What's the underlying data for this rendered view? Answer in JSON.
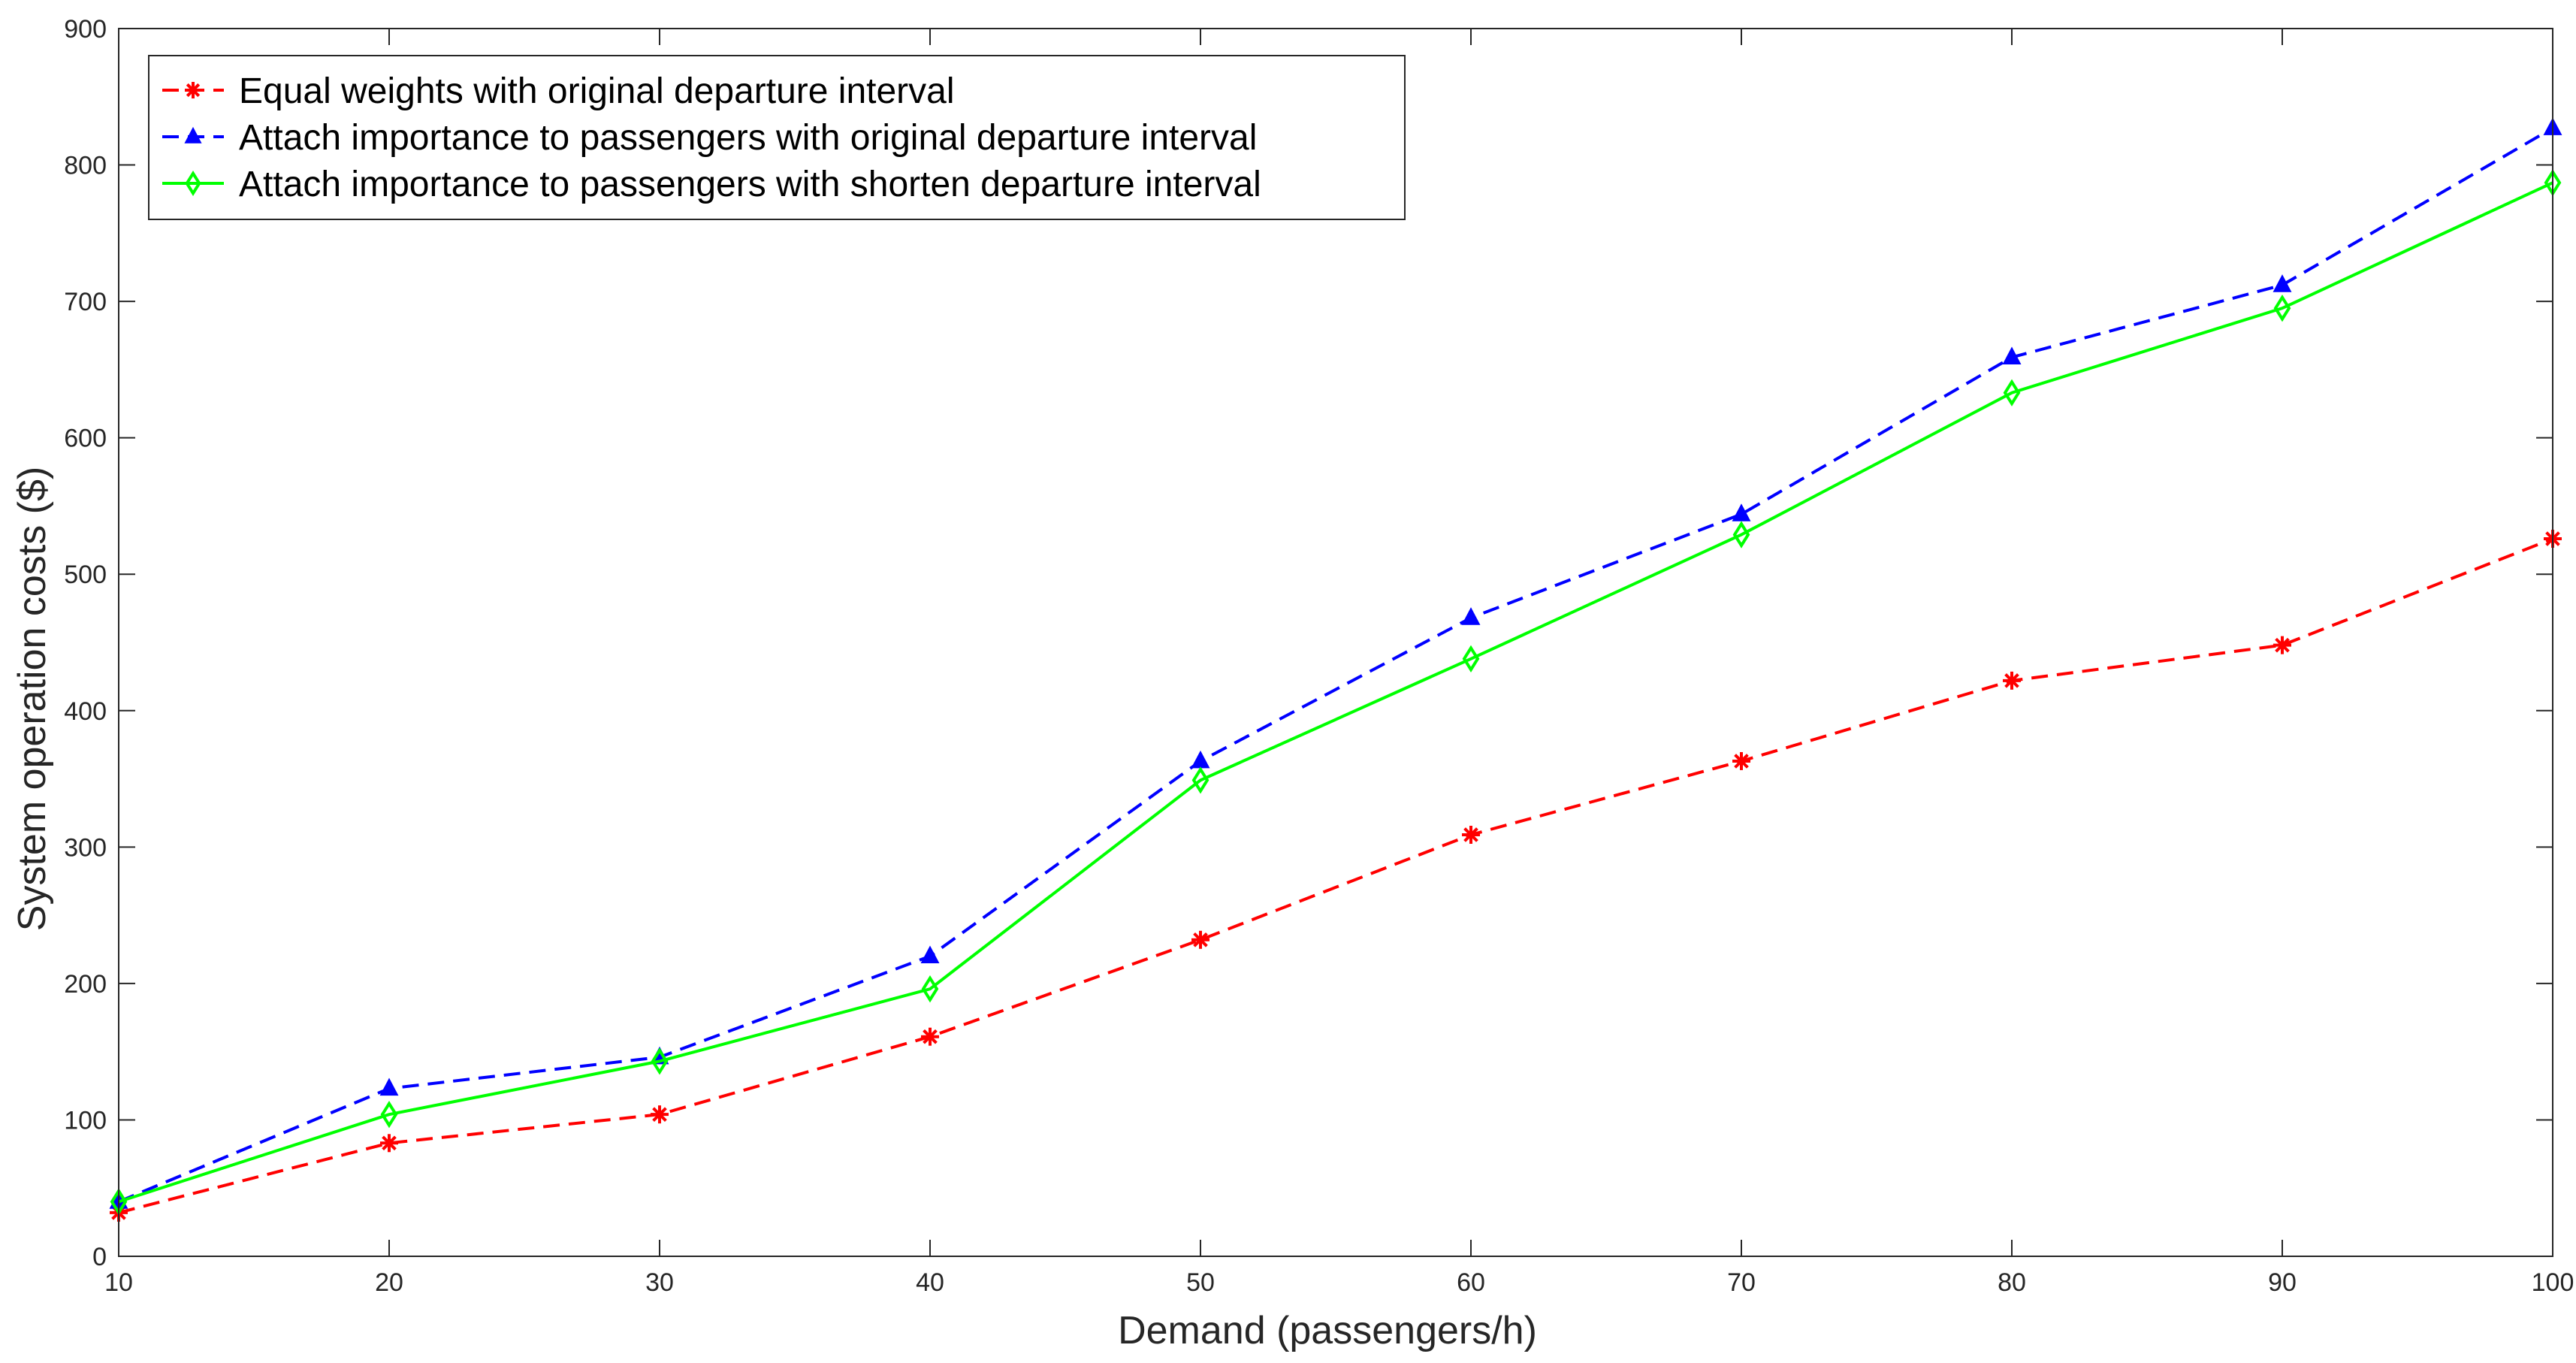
{
  "chart_data": {
    "type": "line",
    "title": "",
    "xlabel": "Demand (passengers/h)",
    "ylabel": "System operation costs ($)",
    "xlim": [
      10,
      100
    ],
    "ylim": [
      0,
      900
    ],
    "xticks": [
      10,
      20,
      30,
      40,
      50,
      60,
      70,
      80,
      90,
      100
    ],
    "yticks": [
      0,
      100,
      200,
      300,
      400,
      500,
      600,
      700,
      800,
      900
    ],
    "grid": false,
    "legend_position": "top-left",
    "x": [
      10,
      20,
      30,
      40,
      50,
      60,
      70,
      80,
      90,
      100
    ],
    "series": [
      {
        "name": "Equal weights with original departure interval",
        "values": [
          32,
          83,
          104,
          161,
          232,
          309,
          363,
          422,
          448,
          526
        ],
        "color": "#ff0000",
        "line_style": "dashed",
        "marker": "asterisk"
      },
      {
        "name": "Attach importance to passengers with original departure interval",
        "values": [
          40,
          123,
          146,
          220,
          363,
          468,
          544,
          659,
          712,
          827
        ],
        "color": "#0000ff",
        "line_style": "dashed",
        "marker": "triangle"
      },
      {
        "name": "Attach importance to passengers with shorten departure interval",
        "values": [
          40,
          104,
          143,
          196,
          349,
          438,
          529,
          633,
          695,
          787
        ],
        "color": "#00ff00",
        "line_style": "solid",
        "marker": "diamond"
      }
    ]
  }
}
